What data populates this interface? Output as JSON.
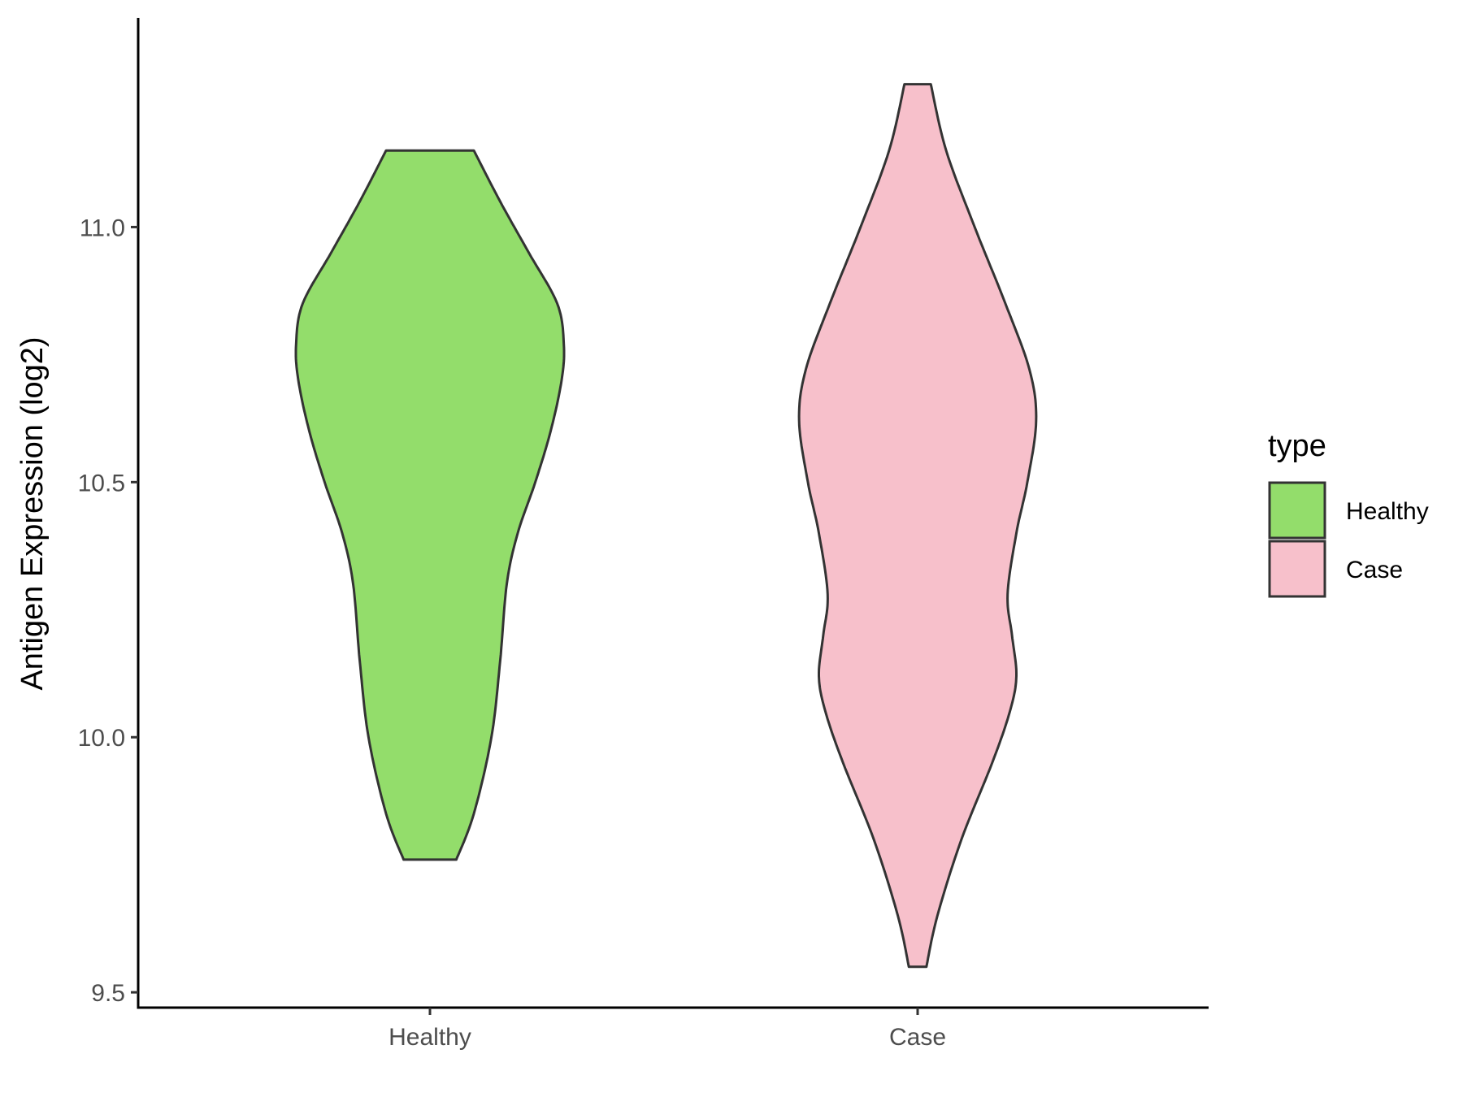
{
  "chart_data": {
    "type": "violin",
    "title": "",
    "xlabel": "",
    "ylabel": "Antigen Expression (log2)",
    "ylim": [
      9.47,
      11.41
    ],
    "yticks": [
      9.5,
      10.0,
      10.5,
      11.0
    ],
    "ytick_labels": [
      "9.5",
      "10.0",
      "10.5",
      "11.0"
    ],
    "categories": [
      "Healthy",
      "Case"
    ],
    "legend": {
      "title": "type",
      "position": "right",
      "entries": [
        "Healthy",
        "Case"
      ]
    },
    "grid": false,
    "series": [
      {
        "name": "Healthy",
        "color": "#93dd6b",
        "y_min": 9.76,
        "y_max": 11.15,
        "density_profile": [
          {
            "y": 9.76,
            "halfwidth": 0.12
          },
          {
            "y": 9.85,
            "halfwidth": 0.2
          },
          {
            "y": 10.0,
            "halfwidth": 0.28
          },
          {
            "y": 10.15,
            "halfwidth": 0.32
          },
          {
            "y": 10.3,
            "halfwidth": 0.35
          },
          {
            "y": 10.4,
            "halfwidth": 0.4
          },
          {
            "y": 10.5,
            "halfwidth": 0.48
          },
          {
            "y": 10.6,
            "halfwidth": 0.55
          },
          {
            "y": 10.7,
            "halfwidth": 0.6
          },
          {
            "y": 10.77,
            "halfwidth": 0.61
          },
          {
            "y": 10.85,
            "halfwidth": 0.58
          },
          {
            "y": 10.95,
            "halfwidth": 0.45
          },
          {
            "y": 11.05,
            "halfwidth": 0.32
          },
          {
            "y": 11.15,
            "halfwidth": 0.2
          }
        ]
      },
      {
        "name": "Case",
        "color": "#f7c0cb",
        "y_min": 9.55,
        "y_max": 11.28,
        "density_profile": [
          {
            "y": 9.55,
            "halfwidth": 0.04
          },
          {
            "y": 9.65,
            "halfwidth": 0.09
          },
          {
            "y": 9.8,
            "halfwidth": 0.2
          },
          {
            "y": 9.95,
            "halfwidth": 0.34
          },
          {
            "y": 10.05,
            "halfwidth": 0.42
          },
          {
            "y": 10.12,
            "halfwidth": 0.45
          },
          {
            "y": 10.2,
            "halfwidth": 0.43
          },
          {
            "y": 10.28,
            "halfwidth": 0.41
          },
          {
            "y": 10.4,
            "halfwidth": 0.45
          },
          {
            "y": 10.5,
            "halfwidth": 0.5
          },
          {
            "y": 10.62,
            "halfwidth": 0.54
          },
          {
            "y": 10.72,
            "halfwidth": 0.51
          },
          {
            "y": 10.85,
            "halfwidth": 0.4
          },
          {
            "y": 11.0,
            "halfwidth": 0.26
          },
          {
            "y": 11.15,
            "halfwidth": 0.13
          },
          {
            "y": 11.28,
            "halfwidth": 0.06
          }
        ]
      }
    ]
  }
}
